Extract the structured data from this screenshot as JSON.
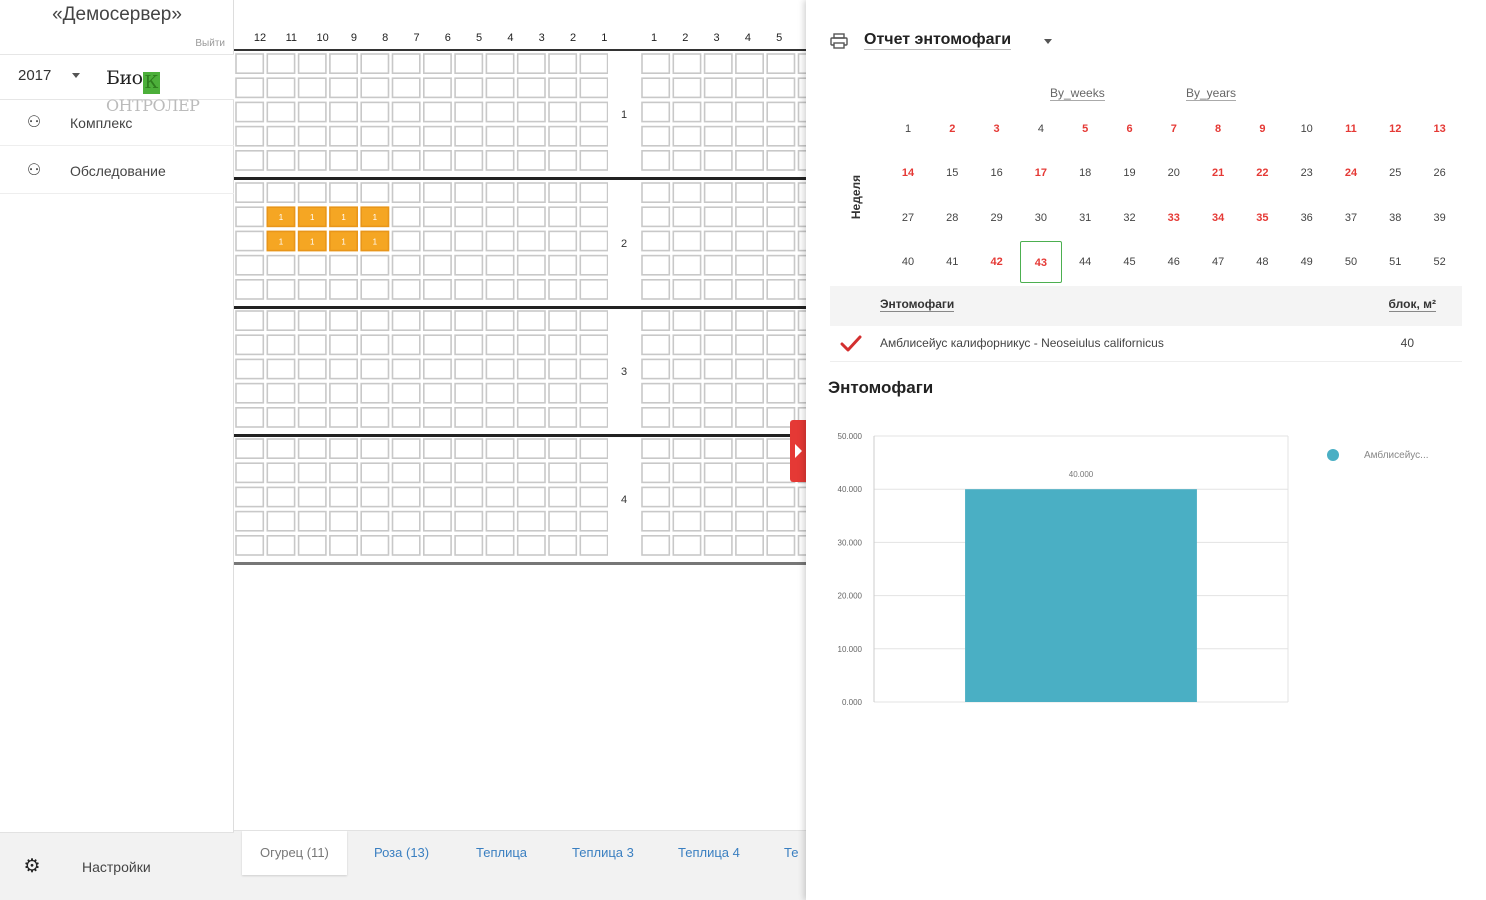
{
  "sidebar": {
    "server_title": "«Демосервер»",
    "logout": "Выйти",
    "year": "2017",
    "logo": {
      "part1": "Био",
      "part2": "К",
      "part3": "ОНТРОЛЕР"
    },
    "items": [
      {
        "label": "Комплекс",
        "icon": "sitemap-icon"
      },
      {
        "label": "Обследование",
        "icon": "sitemap-icon"
      }
    ],
    "settings_label": "Настройки"
  },
  "grid": {
    "left_columns": [
      "12",
      "11",
      "10",
      "9",
      "8",
      "7",
      "6",
      "5",
      "4",
      "3",
      "2",
      "1"
    ],
    "right_columns": [
      "1",
      "2",
      "3",
      "4",
      "5"
    ],
    "rows": [
      {
        "label": "1"
      },
      {
        "label": "2"
      },
      {
        "label": "3"
      },
      {
        "label": "4"
      }
    ],
    "marked_cell_text": "1"
  },
  "tabs": [
    {
      "label": "Огурец (11)",
      "active": true
    },
    {
      "label": "Роза (13)",
      "active": false
    },
    {
      "label": "Теплица",
      "active": false
    },
    {
      "label": "Теплица 3",
      "active": false
    },
    {
      "label": "Теплица 4",
      "active": false
    },
    {
      "label": "Те",
      "active": false
    }
  ],
  "panel": {
    "title": "Отчет энтомофаги",
    "mode_weeks": "By_weeks",
    "mode_years": "By_years",
    "week_label": "Неделя",
    "weeks": [
      "1",
      "2",
      "3",
      "4",
      "5",
      "6",
      "7",
      "8",
      "9",
      "10",
      "11",
      "12",
      "13",
      "14",
      "15",
      "16",
      "17",
      "18",
      "19",
      "20",
      "21",
      "22",
      "23",
      "24",
      "25",
      "26",
      "27",
      "28",
      "29",
      "30",
      "31",
      "32",
      "33",
      "34",
      "35",
      "36",
      "37",
      "38",
      "39",
      "40",
      "41",
      "42",
      "43",
      "44",
      "45",
      "46",
      "47",
      "48",
      "49",
      "50",
      "51",
      "52"
    ],
    "red_weeks": [
      2,
      3,
      5,
      6,
      7,
      8,
      9,
      11,
      12,
      13,
      14,
      17,
      21,
      22,
      24,
      33,
      34,
      35,
      42,
      43
    ],
    "selected_week": 43,
    "table": {
      "col_name": "Энтомофаги",
      "col_value": "блок, м²",
      "rows": [
        {
          "name": "Амблисейус калифорникус - Neoseiulus californicus",
          "value": "40",
          "checked": true
        }
      ]
    },
    "chart_title": "Энтомофаги"
  },
  "colors": {
    "accent_red": "#e53935",
    "marked_cell": "#f5a623",
    "bar": "#4aafc4",
    "check": "#d32f2f"
  },
  "chart_data": {
    "type": "bar",
    "categories": [
      ""
    ],
    "series": [
      {
        "name": "Амблисейус...",
        "values": [
          40
        ]
      }
    ],
    "ylim": [
      0,
      50
    ],
    "yticks": [
      "0.000",
      "10.000",
      "20.000",
      "30.000",
      "40.000",
      "50.000"
    ],
    "data_labels": [
      "40.000"
    ],
    "legend": "right",
    "grid": true
  }
}
